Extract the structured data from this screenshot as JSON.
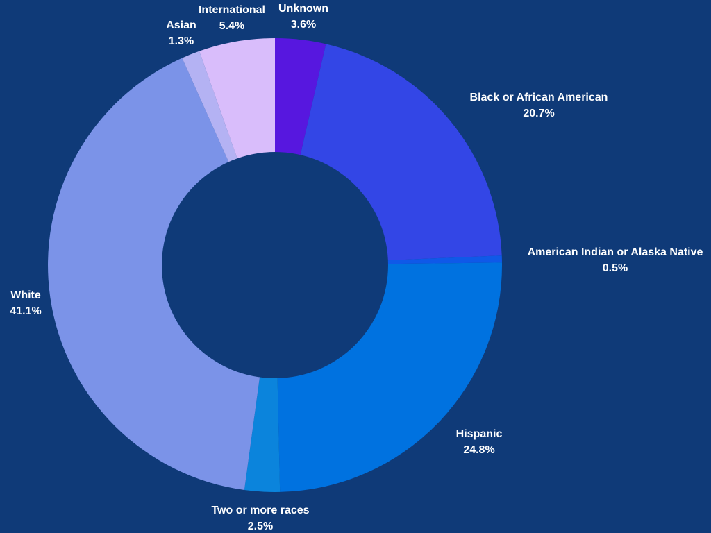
{
  "chart_data": {
    "type": "pie",
    "style": "donut",
    "background": "#0f3a78",
    "slices": [
      {
        "label": "Unknown",
        "value": 3.6,
        "display": "3.6%",
        "color": "#5717df"
      },
      {
        "label": "Black or African American",
        "value": 20.7,
        "display": "20.7%",
        "color": "#3346e6"
      },
      {
        "label": "American Indian or Alaska Native",
        "value": 0.5,
        "display": "0.5%",
        "color": "#0f59e8"
      },
      {
        "label": "Hispanic",
        "value": 24.8,
        "display": "24.8%",
        "color": "#0072e0"
      },
      {
        "label": "Two or more races",
        "value": 2.5,
        "display": "2.5%",
        "color": "#0b84dc"
      },
      {
        "label": "White",
        "value": 41.1,
        "display": "41.1%",
        "color": "#7b93e8"
      },
      {
        "label": "Asian",
        "value": 1.3,
        "display": "1.3%",
        "color": "#b4b2f3"
      },
      {
        "label": "International",
        "value": 5.4,
        "display": "5.4%",
        "color": "#d9bdfb"
      }
    ]
  }
}
